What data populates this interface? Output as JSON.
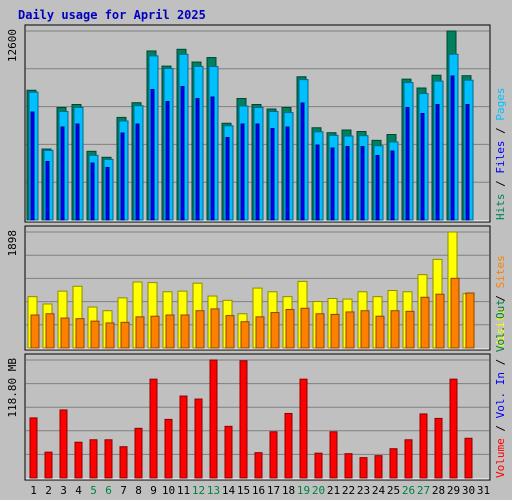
{
  "chart_data": {
    "type": "bar",
    "title": "Daily usage for April 2025",
    "days": [
      "1",
      "2",
      "3",
      "4",
      "5",
      "6",
      "7",
      "8",
      "9",
      "10",
      "11",
      "12",
      "13",
      "14",
      "15",
      "16",
      "17",
      "18",
      "19",
      "20",
      "21",
      "22",
      "23",
      "24",
      "25",
      "26",
      "27",
      "28",
      "29",
      "30",
      "31"
    ],
    "weekend_days": [
      "5",
      "6",
      "12",
      "13",
      "19",
      "20",
      "26",
      "27"
    ],
    "colors": {
      "background": "#c0c0c0",
      "title": "#0000c0",
      "hits": "#00805c",
      "files": "#0000ff",
      "pages": "#00c0ff",
      "visits": "#ffff00",
      "sites": "#ff8000",
      "volume": "#ff0000",
      "weekday_label": "#000000",
      "weekend_label": "#008040"
    },
    "panels": [
      {
        "name": "hits-files-pages",
        "ymax_label": "12600",
        "ymax": 12600,
        "legend": [
          {
            "text": "Hits",
            "color": "#00805c"
          },
          {
            "text": "Files",
            "color": "#0000ff"
          },
          {
            "text": "Pages",
            "color": "#00c0ff"
          }
        ],
        "series": [
          {
            "name": "Hits",
            "values": [
              8650,
              4730,
              7500,
              7700,
              4580,
              4180,
              6840,
              7820,
              11270,
              10260,
              11380,
              10530,
              10830,
              6450,
              8100,
              7700,
              7400,
              7500,
              9550,
              6150,
              5820,
              6000,
              5900,
              5310,
              5700,
              9390,
              8800,
              9650,
              12600,
              9620,
              null
            ]
          },
          {
            "name": "Pages",
            "values": [
              8520,
              4640,
              7230,
              7500,
              4310,
              4040,
              6600,
              7620,
              10940,
              10100,
              11040,
              10240,
              10230,
              6280,
              7600,
              7500,
              7230,
              7160,
              9360,
              5880,
              5640,
              5600,
              5620,
              4950,
              5200,
              9160,
              8430,
              9260,
              11050,
              9320,
              null
            ]
          },
          {
            "name": "Files",
            "values": [
              7200,
              3900,
              6200,
              6400,
              3800,
              3500,
              5800,
              6400,
              8700,
              7900,
              8900,
              8100,
              8200,
              5500,
              6400,
              6400,
              6100,
              6200,
              7800,
              5000,
              4800,
              4900,
              4900,
              4300,
              4600,
              7500,
              7100,
              7700,
              9600,
              7700,
              null
            ]
          }
        ]
      },
      {
        "name": "visits-sites",
        "ymax_label": "1898",
        "ymax": 1898,
        "legend": [
          {
            "text": "Visits",
            "color": "#ffff00"
          },
          {
            "text": "Sites",
            "color": "#ff8000"
          }
        ],
        "series": [
          {
            "name": "Visits",
            "values": [
              840,
              720,
              930,
              1010,
              670,
              610,
              820,
              1080,
              1070,
              920,
              930,
              1060,
              850,
              780,
              560,
              980,
              920,
              840,
              1090,
              760,
              810,
              800,
              920,
              840,
              940,
              920,
              1200,
              1450,
              1898,
              890,
              null
            ]
          },
          {
            "name": "Sites",
            "values": [
              540,
              560,
              490,
              480,
              440,
              410,
              420,
              510,
              520,
              540,
              540,
              610,
              640,
              530,
              430,
              510,
              580,
              630,
              650,
              560,
              550,
              590,
              610,
              520,
              610,
              600,
              830,
              880,
              1140,
              900,
              null
            ]
          }
        ]
      },
      {
        "name": "volume",
        "ymax_label": "118.80 MB",
        "ymax": 118.8,
        "legend": [
          {
            "text": "Volume",
            "color": "#ff0000"
          },
          {
            "text": "Vol. In",
            "color": "#0000ff"
          },
          {
            "text": "Vol. Out",
            "color": "#008040"
          }
        ],
        "series": [
          {
            "name": "Volume",
            "values": [
              60.5,
              26.0,
              68.5,
              36.0,
              38.5,
              38.5,
              31.5,
              50.0,
              99.5,
              59.0,
              82.5,
              79.5,
              118.8,
              52.0,
              118.0,
              25.5,
              46.5,
              65.0,
              99.5,
              25.0,
              46.5,
              24.5,
              20.5,
              22.5,
              29.5,
              38.5,
              64.5,
              60.0,
              99.5,
              40.0,
              null
            ]
          }
        ]
      }
    ]
  }
}
